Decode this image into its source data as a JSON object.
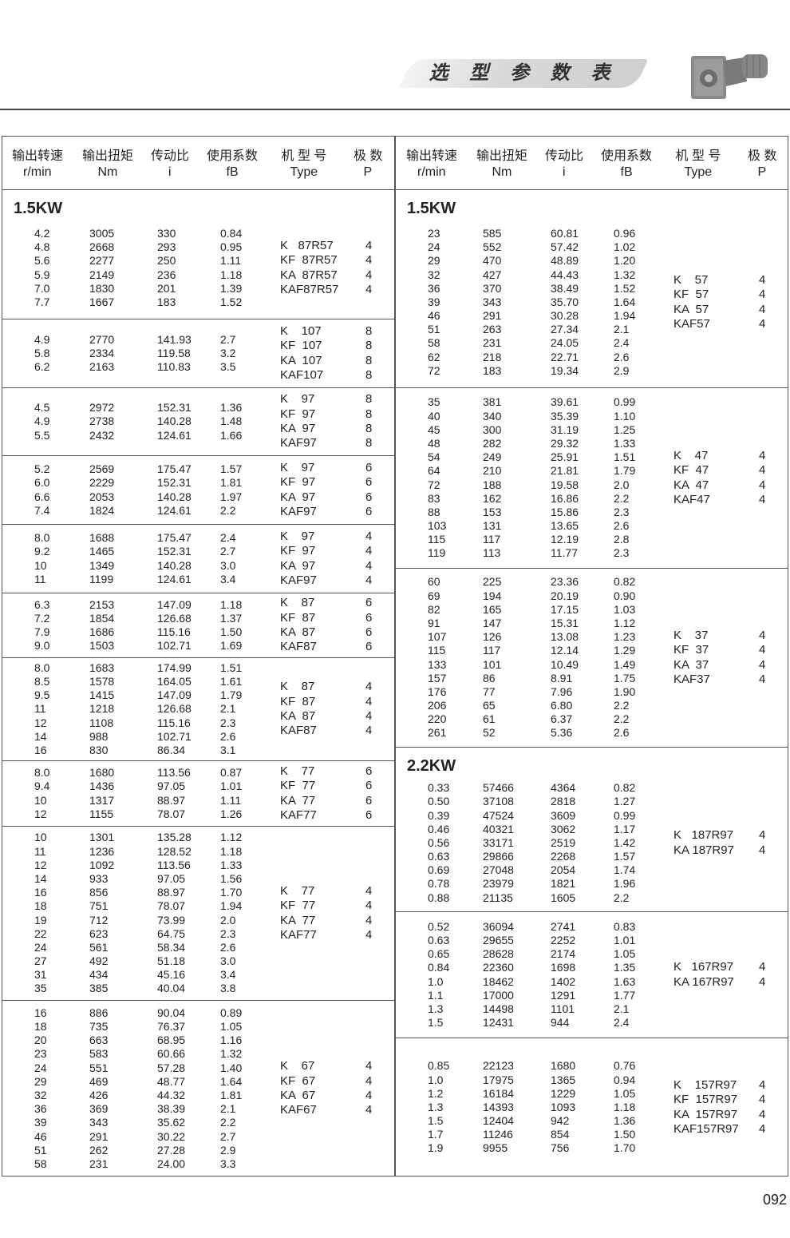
{
  "header": {
    "banner_title": "选 型 参 数 表",
    "product_image": "k-series-helical-bevel-gearmotor"
  },
  "columns": [
    {
      "zh": "输出转速",
      "en": "r/min"
    },
    {
      "zh": "输出扭矩",
      "en": "Nm"
    },
    {
      "zh": "传动比",
      "en": "i"
    },
    {
      "zh": "使用系数",
      "en": "fB"
    },
    {
      "zh": "机 型 号",
      "en": "Type"
    },
    {
      "zh": "极  数",
      "en": "P"
    }
  ],
  "left": [
    {
      "title": "1.5KW",
      "rows": [
        [
          "4.2",
          "3005",
          "330",
          "0.84"
        ],
        [
          "4.8",
          "2668",
          "293",
          "0.95"
        ],
        [
          "5.6",
          "2277",
          "250",
          "1.11"
        ],
        [
          "5.9",
          "2149",
          "236",
          "1.18"
        ],
        [
          "7.0",
          "1830",
          "201",
          "1.39"
        ],
        [
          "7.7",
          "1667",
          "183",
          "1.52"
        ]
      ],
      "types": [
        [
          "K   87R57",
          "4"
        ],
        [
          "KF  87R57",
          "4"
        ],
        [
          "KA  87R57",
          "4"
        ],
        [
          "KAF87R57",
          "4"
        ]
      ]
    },
    {
      "rows": [
        [
          "4.9",
          "2770",
          "141.93",
          "2.7"
        ],
        [
          "5.8",
          "2334",
          "119.58",
          "3.2"
        ],
        [
          "6.2",
          "2163",
          "110.83",
          "3.5"
        ]
      ],
      "types": [
        [
          "K    107",
          "8"
        ],
        [
          "KF  107",
          "8"
        ],
        [
          "KA  107",
          "8"
        ],
        [
          "KAF107",
          "8"
        ]
      ]
    },
    {
      "rows": [
        [
          "4.5",
          "2972",
          "152.31",
          "1.36"
        ],
        [
          "4.9",
          "2738",
          "140.28",
          "1.48"
        ],
        [
          "5.5",
          "2432",
          "124.61",
          "1.66"
        ]
      ],
      "types": [
        [
          "K    97",
          "8"
        ],
        [
          "KF  97",
          "8"
        ],
        [
          "KA  97",
          "8"
        ],
        [
          "KAF97",
          "8"
        ]
      ]
    },
    {
      "rows": [
        [
          "5.2",
          "2569",
          "175.47",
          "1.57"
        ],
        [
          "6.0",
          "2229",
          "152.31",
          "1.81"
        ],
        [
          "6.6",
          "2053",
          "140.28",
          "1.97"
        ],
        [
          "7.4",
          "1824",
          "124.61",
          "2.2"
        ]
      ],
      "types": [
        [
          "K    97",
          "6"
        ],
        [
          "KF  97",
          "6"
        ],
        [
          "KA  97",
          "6"
        ],
        [
          "KAF97",
          "6"
        ]
      ]
    },
    {
      "rows": [
        [
          "8.0",
          "1688",
          "175.47",
          "2.4"
        ],
        [
          "9.2",
          "1465",
          "152.31",
          "2.7"
        ],
        [
          "10",
          "1349",
          "140.28",
          "3.0"
        ],
        [
          "11",
          "1199",
          "124.61",
          "3.4"
        ]
      ],
      "types": [
        [
          "K    97",
          "4"
        ],
        [
          "KF  97",
          "4"
        ],
        [
          "KA  97",
          "4"
        ],
        [
          "KAF97",
          "4"
        ]
      ]
    },
    {
      "rows": [
        [
          "6.3",
          "2153",
          "147.09",
          "1.18"
        ],
        [
          "7.2",
          "1854",
          "126.68",
          "1.37"
        ],
        [
          "7.9",
          "1686",
          "115.16",
          "1.50"
        ],
        [
          "9.0",
          "1503",
          "102.71",
          "1.69"
        ]
      ],
      "types": [
        [
          "K    87",
          "6"
        ],
        [
          "KF  87",
          "6"
        ],
        [
          "KA  87",
          "6"
        ],
        [
          "KAF87",
          "6"
        ]
      ]
    },
    {
      "rows": [
        [
          "8.0",
          "1683",
          "174.99",
          "1.51"
        ],
        [
          "8.5",
          "1578",
          "164.05",
          "1.61"
        ],
        [
          "9.5",
          "1415",
          "147.09",
          "1.79"
        ],
        [
          "11",
          "1218",
          "126.68",
          "2.1"
        ],
        [
          "12",
          "1108",
          "115.16",
          "2.3"
        ],
        [
          "14",
          "988",
          "102.71",
          "2.6"
        ],
        [
          "16",
          "830",
          "86.34",
          "3.1"
        ]
      ],
      "types": [
        [
          "K    87",
          "4"
        ],
        [
          "KF  87",
          "4"
        ],
        [
          "KA  87",
          "4"
        ],
        [
          "KAF87",
          "4"
        ]
      ]
    },
    {
      "rows": [
        [
          "8.0",
          "1680",
          "113.56",
          "0.87"
        ],
        [
          "9.4",
          "1436",
          "97.05",
          "1.01"
        ],
        [
          "10",
          "1317",
          "88.97",
          "1.11"
        ],
        [
          "12",
          "1155",
          "78.07",
          "1.26"
        ]
      ],
      "types": [
        [
          "K    77",
          "6"
        ],
        [
          "KF  77",
          "6"
        ],
        [
          "KA  77",
          "6"
        ],
        [
          "KAF77",
          "6"
        ]
      ]
    },
    {
      "rows": [
        [
          "10",
          "1301",
          "135.28",
          "1.12"
        ],
        [
          "11",
          "1236",
          "128.52",
          "1.18"
        ],
        [
          "12",
          "1092",
          "113.56",
          "1.33"
        ],
        [
          "14",
          "933",
          "97.05",
          "1.56"
        ],
        [
          "16",
          "856",
          "88.97",
          "1.70"
        ],
        [
          "18",
          "751",
          "78.07",
          "1.94"
        ],
        [
          "19",
          "712",
          "73.99",
          "2.0"
        ],
        [
          "22",
          "623",
          "64.75",
          "2.3"
        ],
        [
          "24",
          "561",
          "58.34",
          "2.6"
        ],
        [
          "27",
          "492",
          "51.18",
          "3.0"
        ],
        [
          "31",
          "434",
          "45.16",
          "3.4"
        ],
        [
          "35",
          "385",
          "40.04",
          "3.8"
        ]
      ],
      "types": [
        [
          "K    77",
          "4"
        ],
        [
          "KF  77",
          "4"
        ],
        [
          "KA  77",
          "4"
        ],
        [
          "KAF77",
          "4"
        ]
      ]
    },
    {
      "rows": [
        [
          "16",
          "886",
          "90.04",
          "0.89"
        ],
        [
          "18",
          "735",
          "76.37",
          "1.05"
        ],
        [
          "20",
          "663",
          "68.95",
          "1.16"
        ],
        [
          "23",
          "583",
          "60.66",
          "1.32"
        ],
        [
          "24",
          "551",
          "57.28",
          "1.40"
        ],
        [
          "29",
          "469",
          "48.77",
          "1.64"
        ],
        [
          "32",
          "426",
          "44.32",
          "1.81"
        ],
        [
          "36",
          "369",
          "38.39",
          "2.1"
        ],
        [
          "39",
          "343",
          "35.62",
          "2.2"
        ],
        [
          "46",
          "291",
          "30.22",
          "2.7"
        ],
        [
          "51",
          "262",
          "27.28",
          "2.9"
        ],
        [
          "58",
          "231",
          "24.00",
          "3.3"
        ]
      ],
      "types": [
        [
          "K    67",
          "4"
        ],
        [
          "KF  67",
          "4"
        ],
        [
          "KA  67",
          "4"
        ],
        [
          "KAF67",
          "4"
        ]
      ]
    }
  ],
  "right": [
    {
      "title": "1.5KW",
      "rows": [
        [
          "23",
          "585",
          "60.81",
          "0.96"
        ],
        [
          "24",
          "552",
          "57.42",
          "1.02"
        ],
        [
          "29",
          "470",
          "48.89",
          "1.20"
        ],
        [
          "32",
          "427",
          "44.43",
          "1.32"
        ],
        [
          "36",
          "370",
          "38.49",
          "1.52"
        ],
        [
          "39",
          "343",
          "35.70",
          "1.64"
        ],
        [
          "46",
          "291",
          "30.28",
          "1.94"
        ],
        [
          "51",
          "263",
          "27.34",
          "2.1"
        ],
        [
          "58",
          "231",
          "24.05",
          "2.4"
        ],
        [
          "62",
          "218",
          "22.71",
          "2.6"
        ],
        [
          "72",
          "183",
          "19.34",
          "2.9"
        ]
      ],
      "types": [
        [
          "K    57",
          "4"
        ],
        [
          "KF  57",
          "4"
        ],
        [
          "KA  57",
          "4"
        ],
        [
          "KAF57",
          "4"
        ]
      ]
    },
    {
      "rows": [
        [
          "35",
          "381",
          "39.61",
          "0.99"
        ],
        [
          "40",
          "340",
          "35.39",
          "1.10"
        ],
        [
          "45",
          "300",
          "31.19",
          "1.25"
        ],
        [
          "48",
          "282",
          "29.32",
          "1.33"
        ],
        [
          "54",
          "249",
          "25.91",
          "1.51"
        ],
        [
          "64",
          "210",
          "21.81",
          "1.79"
        ],
        [
          "72",
          "188",
          "19.58",
          "2.0"
        ],
        [
          "83",
          "162",
          "16.86",
          "2.2"
        ],
        [
          "88",
          "153",
          "15.86",
          "2.3"
        ],
        [
          "103",
          "131",
          "13.65",
          "2.6"
        ],
        [
          "115",
          "117",
          "12.19",
          "2.8"
        ],
        [
          "119",
          "113",
          "11.77",
          "2.3"
        ]
      ],
      "types": [
        [
          "K    47",
          "4"
        ],
        [
          "KF  47",
          "4"
        ],
        [
          "KA  47",
          "4"
        ],
        [
          "KAF47",
          "4"
        ]
      ]
    },
    {
      "rows": [
        [
          "60",
          "225",
          "23.36",
          "0.82"
        ],
        [
          "69",
          "194",
          "20.19",
          "0.90"
        ],
        [
          "82",
          "165",
          "17.15",
          "1.03"
        ],
        [
          "91",
          "147",
          "15.31",
          "1.12"
        ],
        [
          "107",
          "126",
          "13.08",
          "1.23"
        ],
        [
          "115",
          "117",
          "12.14",
          "1.29"
        ],
        [
          "133",
          "101",
          "10.49",
          "1.49"
        ],
        [
          "157",
          "86",
          "8.91",
          "1.75"
        ],
        [
          "176",
          "77",
          "7.96",
          "1.90"
        ],
        [
          "206",
          "65",
          "6.80",
          "2.2"
        ],
        [
          "220",
          "61",
          "6.37",
          "2.2"
        ],
        [
          "261",
          "52",
          "5.36",
          "2.6"
        ]
      ],
      "types": [
        [
          "K    37",
          "4"
        ],
        [
          "KF  37",
          "4"
        ],
        [
          "KA  37",
          "4"
        ],
        [
          "KAF37",
          "4"
        ]
      ]
    },
    {
      "title": "2.2KW",
      "rows": [
        [
          "0.33",
          "57466",
          "4364",
          "0.82"
        ],
        [
          "0.50",
          "37108",
          "2818",
          "1.27"
        ],
        [
          "0.39",
          "47524",
          "3609",
          "0.99"
        ],
        [
          "0.46",
          "40321",
          "3062",
          "1.17"
        ],
        [
          "0.56",
          "33171",
          "2519",
          "1.42"
        ],
        [
          "0.63",
          "29866",
          "2268",
          "1.57"
        ],
        [
          "0.69",
          "27048",
          "2054",
          "1.74"
        ],
        [
          "0.78",
          "23979",
          "1821",
          "1.96"
        ],
        [
          "0.88",
          "21135",
          "1605",
          "2.2"
        ]
      ],
      "types": [
        [
          "K   187R97",
          "4"
        ],
        [
          "KA 187R97",
          "4"
        ]
      ]
    },
    {
      "rows": [
        [
          "0.52",
          "36094",
          "2741",
          "0.83"
        ],
        [
          "0.63",
          "29655",
          "2252",
          "1.01"
        ],
        [
          "0.65",
          "28628",
          "2174",
          "1.05"
        ],
        [
          "0.84",
          "22360",
          "1698",
          "1.35"
        ],
        [
          "1.0",
          "18462",
          "1402",
          "1.63"
        ],
        [
          "1.1",
          "17000",
          "1291",
          "1.77"
        ],
        [
          "1.3",
          "14498",
          "1101",
          "2.1"
        ],
        [
          "1.5",
          "12431",
          "944",
          "2.4"
        ]
      ],
      "types": [
        [
          "K   167R97",
          "4"
        ],
        [
          "KA 167R97",
          "4"
        ]
      ]
    },
    {
      "rows": [
        [
          "0.85",
          "22123",
          "1680",
          "0.76"
        ],
        [
          "1.0",
          "17975",
          "1365",
          "0.94"
        ],
        [
          "1.2",
          "16184",
          "1229",
          "1.05"
        ],
        [
          "1.3",
          "14393",
          "1093",
          "1.18"
        ],
        [
          "1.5",
          "12404",
          "942",
          "1.36"
        ],
        [
          "1.7",
          "11246",
          "854",
          "1.50"
        ],
        [
          "1.9",
          "9955",
          "756",
          "1.70"
        ]
      ],
      "types": [
        [
          "K    157R97",
          "4"
        ],
        [
          "KF  157R97",
          "4"
        ],
        [
          "KA  157R97",
          "4"
        ],
        [
          "KAF157R97",
          "4"
        ]
      ]
    }
  ],
  "page_number": "092"
}
